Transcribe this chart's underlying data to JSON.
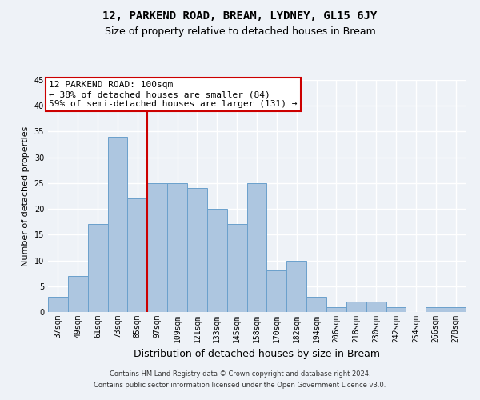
{
  "title": "12, PARKEND ROAD, BREAM, LYDNEY, GL15 6JY",
  "subtitle": "Size of property relative to detached houses in Bream",
  "xlabel": "Distribution of detached houses by size in Bream",
  "ylabel": "Number of detached properties",
  "categories": [
    "37sqm",
    "49sqm",
    "61sqm",
    "73sqm",
    "85sqm",
    "97sqm",
    "109sqm",
    "121sqm",
    "133sqm",
    "145sqm",
    "158sqm",
    "170sqm",
    "182sqm",
    "194sqm",
    "206sqm",
    "218sqm",
    "230sqm",
    "242sqm",
    "254sqm",
    "266sqm",
    "278sqm"
  ],
  "values": [
    3,
    7,
    17,
    34,
    22,
    25,
    25,
    24,
    20,
    17,
    25,
    8,
    10,
    3,
    1,
    2,
    2,
    1,
    0,
    1,
    1
  ],
  "bar_color": "#adc6e0",
  "bar_edge_color": "#6aa0cc",
  "property_line_index": 5,
  "property_line_color": "#cc0000",
  "annotation_text": "12 PARKEND ROAD: 100sqm\n← 38% of detached houses are smaller (84)\n59% of semi-detached houses are larger (131) →",
  "annotation_box_color": "#ffffff",
  "annotation_box_edgecolor": "#cc0000",
  "ylim": [
    0,
    45
  ],
  "yticks": [
    0,
    5,
    10,
    15,
    20,
    25,
    30,
    35,
    40,
    45
  ],
  "footnote1": "Contains HM Land Registry data © Crown copyright and database right 2024.",
  "footnote2": "Contains public sector information licensed under the Open Government Licence v3.0.",
  "background_color": "#eef2f7",
  "grid_color": "#ffffff",
  "title_fontsize": 10,
  "subtitle_fontsize": 9,
  "ylabel_fontsize": 8,
  "xlabel_fontsize": 9,
  "tick_fontsize": 7,
  "annotation_fontsize": 8,
  "footnote_fontsize": 6
}
